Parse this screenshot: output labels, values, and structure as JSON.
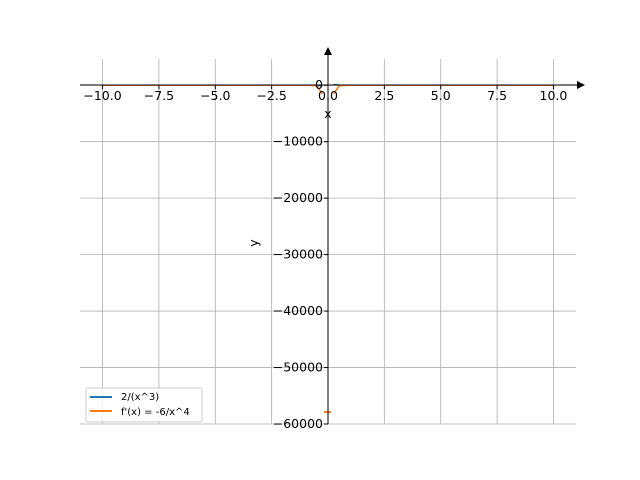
{
  "chart_data": {
    "type": "line",
    "xlabel": "x",
    "ylabel": "y",
    "xlim": [
      -11,
      11
    ],
    "ylim": [
      -60000,
      5000
    ],
    "x_ticks": [
      -10,
      -7.5,
      -5,
      -2.5,
      0,
      2.5,
      5,
      7.5,
      10
    ],
    "x_tick_labels": [
      "−10.0",
      "−7.5",
      "−5.0",
      "−2.5",
      "0.0",
      "2.5",
      "5.0",
      "7.5",
      "10.0"
    ],
    "y_ticks": [
      0,
      -10000,
      -20000,
      -30000,
      -40000,
      -50000,
      -60000
    ],
    "y_tick_labels": [
      "0",
      "−10000",
      "−20000",
      "−30000",
      "−40000",
      "−50000",
      "−60000"
    ],
    "grid": true,
    "legend_position": "lower-left",
    "series": [
      {
        "name": "2/(x^3)",
        "color": "#1f77b4",
        "expression": "2/x^3",
        "x_range": [
          -10,
          10
        ]
      },
      {
        "name": "f'(x) = -6/x^4",
        "color": "#ff7f0e",
        "expression": "-6/x^4",
        "x_range": [
          -10,
          10
        ]
      }
    ]
  }
}
